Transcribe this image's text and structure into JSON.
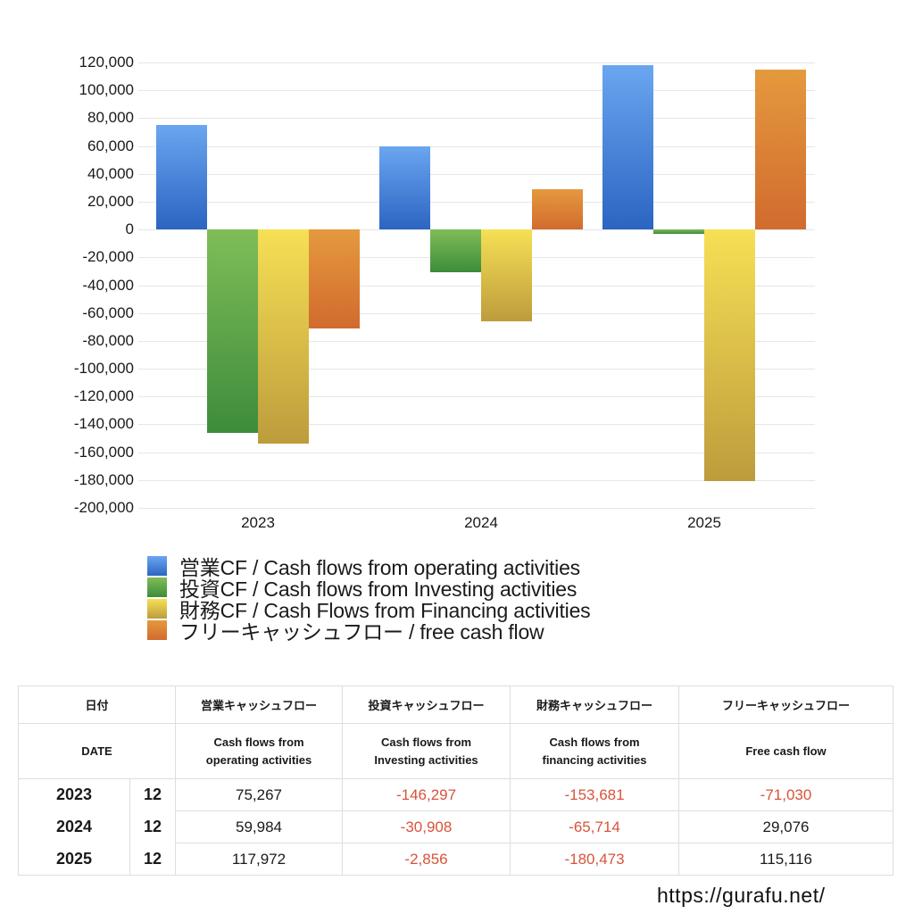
{
  "chart_data": {
    "type": "bar",
    "title": "",
    "xlabel": "",
    "ylabel": "",
    "categories": [
      "2023",
      "2024",
      "2025"
    ],
    "ylim": [
      -200000,
      120000
    ],
    "yticks": [
      "120,000",
      "100,000",
      "80,000",
      "60,000",
      "40,000",
      "20,000",
      "0",
      "-20,000",
      "-40,000",
      "-60,000",
      "-80,000",
      "-100,000",
      "-120,000",
      "-140,000",
      "-160,000",
      "-180,000",
      "-200,000"
    ],
    "grid": true,
    "legend_position": "bottom",
    "series": [
      {
        "name": "営業CF / Cash flows from operating activities",
        "color": "#3a78d4",
        "values": [
          75267,
          59984,
          117972
        ]
      },
      {
        "name": "投資CF / Cash flows from Investing activities",
        "color": "#5aa346",
        "values": [
          -146297,
          -30908,
          -2856
        ]
      },
      {
        "name": "財務CF / Cash Flows from Financing activities",
        "color": "#e3c445",
        "values": [
          -153681,
          -65714,
          -180473
        ]
      },
      {
        "name": "フリーキャッシュフロー / free cash flow",
        "color": "#dd7e35",
        "values": [
          -71030,
          29076,
          115116
        ]
      }
    ]
  },
  "legend": {
    "items": [
      {
        "label": "営業CF / Cash flows from operating activities"
      },
      {
        "label": "投資CF / Cash flows from Investing activities"
      },
      {
        "label": "財務CF / Cash Flows from Financing activities"
      },
      {
        "label": "フリーキャッシュフロー / free cash flow"
      }
    ]
  },
  "table": {
    "header_jp": {
      "date": "日付",
      "operating": "営業キャッシュフロー",
      "investing": "投資キャッシュフロー",
      "financing": "財務キャッシュフロー",
      "free": "フリーキャッシュフロー"
    },
    "header_en": {
      "date": "DATE",
      "operating_1": "Cash flows from",
      "operating_2": "operating activities",
      "investing_1": "Cash flows from",
      "investing_2": "Investing activities",
      "financing_1": "Cash flows from",
      "financing_2": "financing activities",
      "free": "Free cash flow"
    },
    "rows": [
      {
        "year": "2023",
        "month": "12",
        "operating": "75,267",
        "investing": "-146,297",
        "financing": "-153,681",
        "free": "-71,030"
      },
      {
        "year": "2024",
        "month": "12",
        "operating": "59,984",
        "investing": "-30,908",
        "financing": "-65,714",
        "free": "29,076"
      },
      {
        "year": "2025",
        "month": "12",
        "operating": "117,972",
        "investing": "-2,856",
        "financing": "-180,473",
        "free": "115,116"
      }
    ]
  },
  "footer": {
    "url": "https://gurafu.net/"
  }
}
